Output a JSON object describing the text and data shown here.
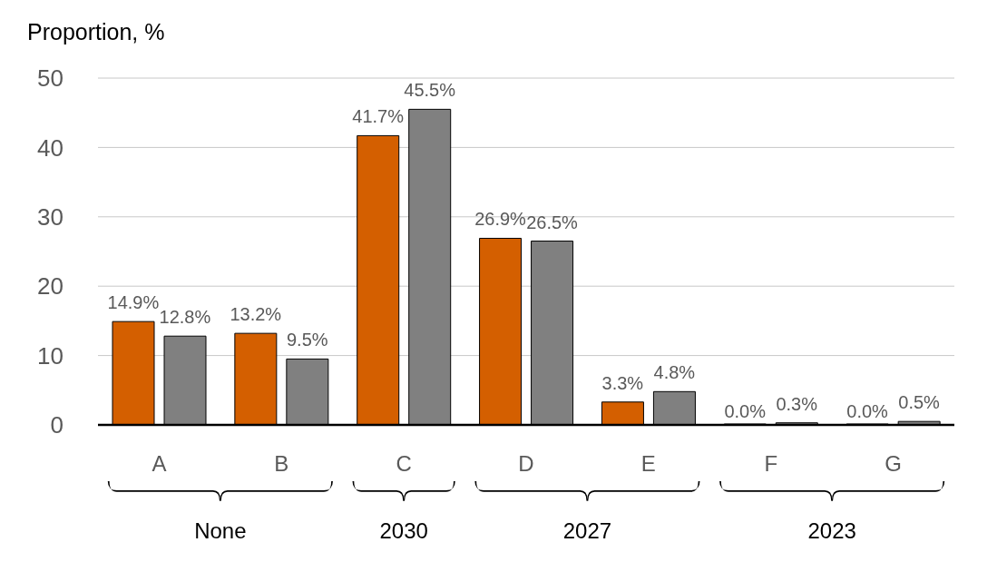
{
  "chart_data": {
    "type": "bar",
    "ylabel": "Proportion, %",
    "categories": [
      "A",
      "B",
      "C",
      "D",
      "E",
      "F",
      "G"
    ],
    "series": [
      {
        "color": "#d45f00",
        "values": [
          14.9,
          13.2,
          41.7,
          26.9,
          3.3,
          0.0,
          0.0
        ],
        "value_labels": [
          "14.9%",
          "13.2%",
          "41.7%",
          "26.9%",
          "3.3%",
          "0.0%",
          "0.0%"
        ]
      },
      {
        "color": "#808080",
        "values": [
          12.8,
          9.5,
          45.5,
          26.5,
          4.8,
          0.3,
          0.5
        ],
        "value_labels": [
          "12.8%",
          "9.5%",
          "45.5%",
          "26.5%",
          "4.8%",
          "0.3%",
          "0.5%"
        ]
      }
    ],
    "ylim": [
      0,
      50
    ],
    "yticks": [
      0,
      10,
      20,
      30,
      40,
      50
    ],
    "grid": "y",
    "annotations": [
      "None",
      "2030",
      "2027",
      "2023"
    ]
  }
}
